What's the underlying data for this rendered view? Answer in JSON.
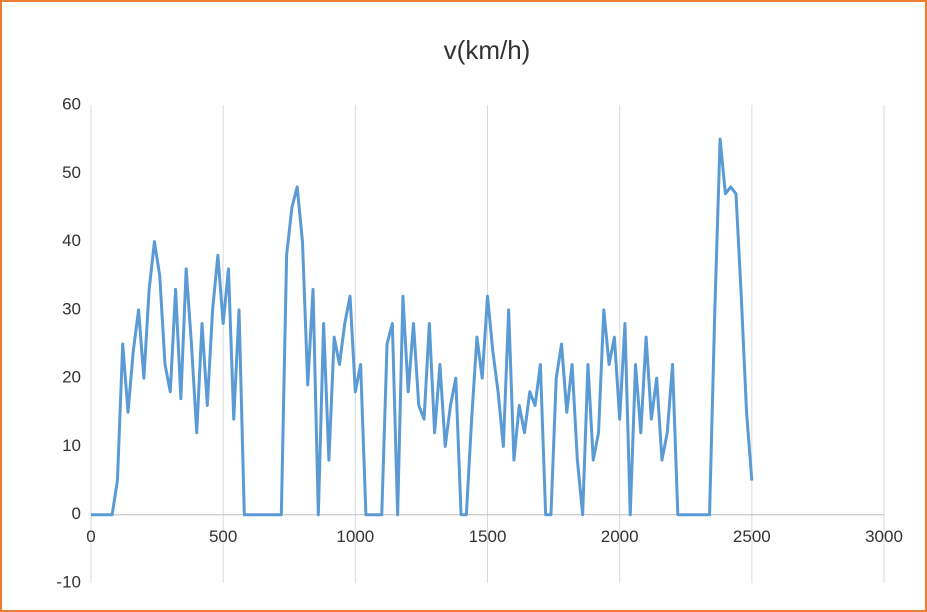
{
  "chart_data": {
    "type": "line",
    "title": "v(km/h)",
    "color": "#5b9bd5",
    "grid": true,
    "xlim": [
      0,
      3000
    ],
    "xticks": [
      0,
      500,
      1000,
      1500,
      2000,
      2500,
      3000
    ],
    "ylim": [
      -10,
      60
    ],
    "yticks": [
      -10,
      0,
      10,
      20,
      30,
      40,
      50,
      60
    ],
    "x": [
      0,
      20,
      40,
      60,
      80,
      100,
      120,
      140,
      160,
      180,
      200,
      220,
      240,
      260,
      280,
      300,
      320,
      340,
      360,
      380,
      400,
      420,
      440,
      460,
      480,
      500,
      520,
      540,
      560,
      580,
      600,
      620,
      640,
      660,
      680,
      700,
      720,
      740,
      760,
      780,
      800,
      820,
      840,
      860,
      880,
      900,
      920,
      940,
      960,
      980,
      1000,
      1020,
      1040,
      1060,
      1080,
      1100,
      1120,
      1140,
      1160,
      1180,
      1200,
      1220,
      1240,
      1260,
      1280,
      1300,
      1320,
      1340,
      1360,
      1380,
      1400,
      1420,
      1440,
      1460,
      1480,
      1500,
      1520,
      1540,
      1560,
      1580,
      1600,
      1620,
      1640,
      1660,
      1680,
      1700,
      1720,
      1740,
      1760,
      1780,
      1800,
      1820,
      1840,
      1860,
      1880,
      1900,
      1920,
      1940,
      1960,
      1980,
      2000,
      2020,
      2040,
      2060,
      2080,
      2100,
      2120,
      2140,
      2160,
      2180,
      2200,
      2220,
      2240,
      2260,
      2280,
      2300,
      2320,
      2340,
      2360,
      2380,
      2400,
      2420,
      2440,
      2460,
      2480,
      2500
    ],
    "values": [
      0,
      0,
      0,
      0,
      0,
      5,
      25,
      15,
      24,
      30,
      20,
      33,
      40,
      35,
      22,
      18,
      33,
      17,
      36,
      25,
      12,
      28,
      16,
      30,
      38,
      28,
      36,
      14,
      30,
      0,
      0,
      0,
      0,
      0,
      0,
      0,
      0,
      38,
      45,
      48,
      40,
      19,
      33,
      0,
      28,
      8,
      26,
      22,
      28,
      32,
      18,
      22,
      0,
      0,
      0,
      0,
      25,
      28,
      0,
      32,
      18,
      28,
      16,
      14,
      28,
      12,
      22,
      10,
      16,
      20,
      0,
      0,
      14,
      26,
      20,
      32,
      24,
      18,
      10,
      30,
      8,
      16,
      12,
      18,
      16,
      22,
      0,
      0,
      20,
      25,
      15,
      22,
      8,
      0,
      22,
      8,
      12,
      30,
      22,
      26,
      14,
      28,
      0,
      22,
      12,
      26,
      14,
      20,
      8,
      12,
      22,
      0,
      0,
      0,
      0,
      0,
      0,
      0,
      30,
      55,
      47,
      48,
      47,
      32,
      15,
      5
    ]
  }
}
